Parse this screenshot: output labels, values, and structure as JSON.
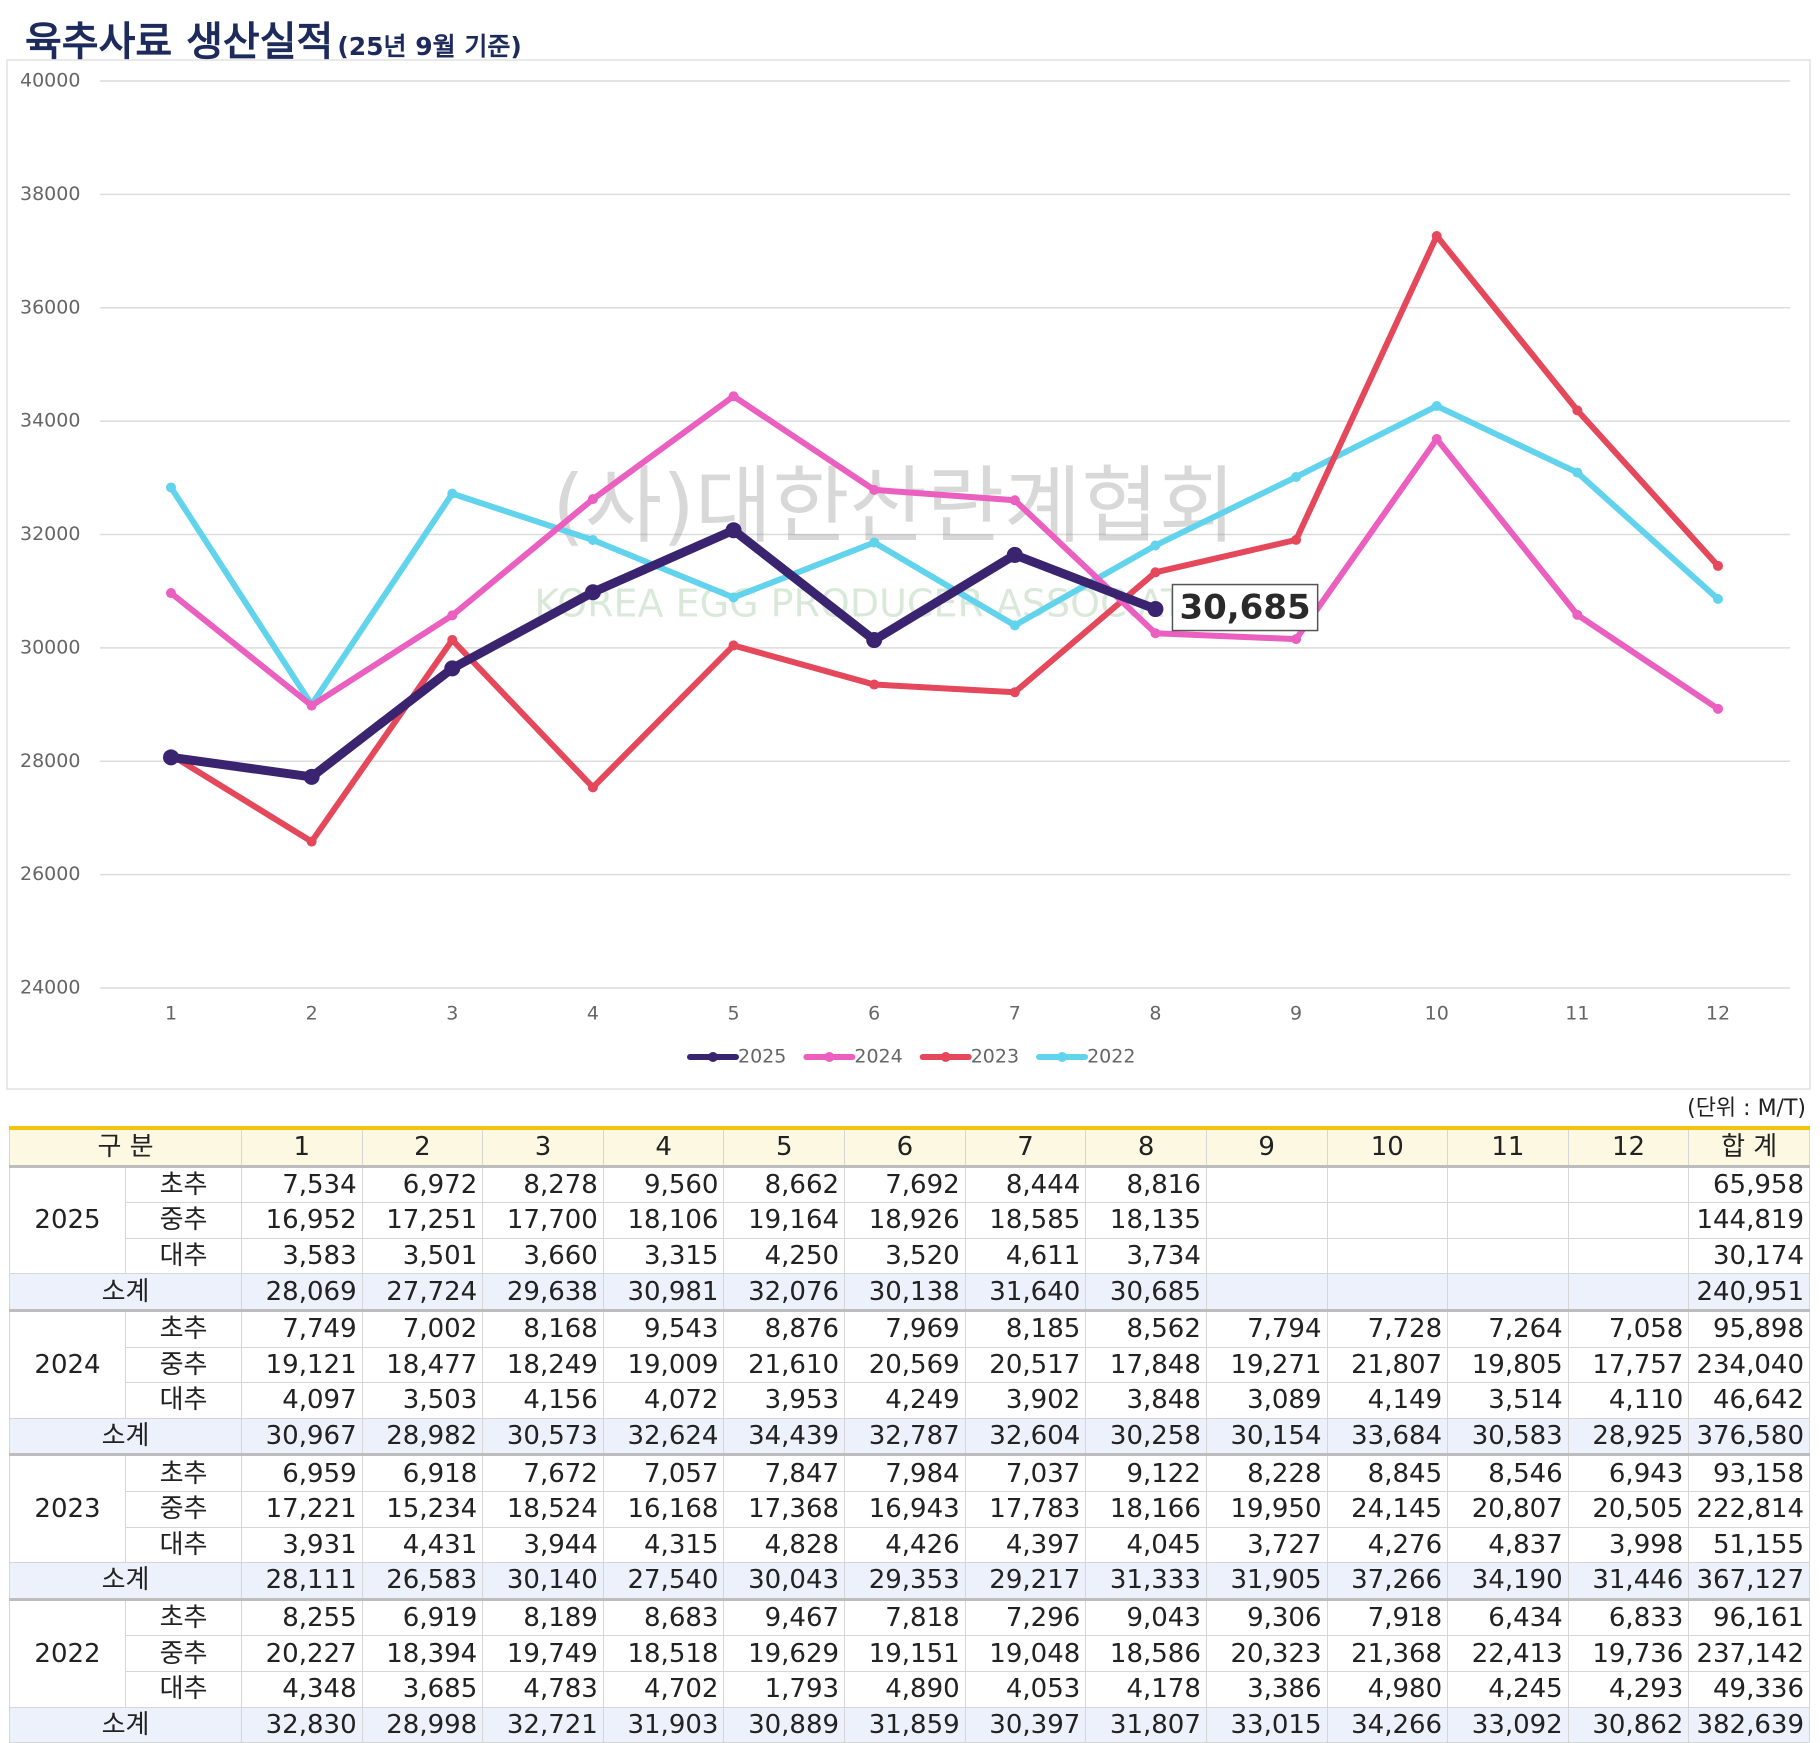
{
  "chart_data": {
    "type": "line",
    "title": "육추사료 생산실적",
    "subtitle": "(25년 9월 기준)",
    "watermark": [
      "(사)대한산란계협회",
      "KOREA EGG PRODUCER ASSOCIATION"
    ],
    "categories": [
      "1",
      "2",
      "3",
      "4",
      "5",
      "6",
      "7",
      "8",
      "9",
      "10",
      "11",
      "12"
    ],
    "ylim": [
      24000,
      40000
    ],
    "yticks": [
      24000,
      26000,
      28000,
      30000,
      32000,
      34000,
      36000,
      38000,
      40000
    ],
    "grid": true,
    "legend": "bottom",
    "series": [
      {
        "name": "2025",
        "color": "#3a2470",
        "values": [
          28069,
          27724,
          29638,
          30981,
          32076,
          30138,
          31640,
          30685,
          null,
          null,
          null,
          null
        ],
        "value_labels": [
          null,
          null,
          null,
          null,
          null,
          null,
          null,
          "30,685",
          null,
          null,
          null,
          null
        ]
      },
      {
        "name": "2024",
        "color": "#ea5fbf",
        "values": [
          30967,
          28982,
          30573,
          32624,
          34439,
          32787,
          32604,
          30258,
          30154,
          33684,
          30583,
          28925
        ]
      },
      {
        "name": "2023",
        "color": "#e4485a",
        "values": [
          28111,
          26583,
          30140,
          27540,
          30043,
          29353,
          29217,
          31333,
          31905,
          37266,
          34190,
          31446
        ]
      },
      {
        "name": "2022",
        "color": "#62d3ec",
        "values": [
          32830,
          28998,
          32721,
          31903,
          30889,
          31859,
          30397,
          31807,
          33015,
          34266,
          33092,
          30862
        ]
      }
    ]
  },
  "table": {
    "unit": "(단위 : M/T)",
    "header": [
      "구 분",
      "1",
      "2",
      "3",
      "4",
      "5",
      "6",
      "7",
      "8",
      "9",
      "10",
      "11",
      "12",
      "합 계"
    ],
    "groups": [
      {
        "year": "2025",
        "rows": [
          {
            "label": "초추",
            "values": [
              "7,534",
              "6,972",
              "8,278",
              "9,560",
              "8,662",
              "7,692",
              "8,444",
              "8,816",
              null,
              null,
              null,
              null,
              "65,958"
            ]
          },
          {
            "label": "중추",
            "values": [
              "16,952",
              "17,251",
              "17,700",
              "18,106",
              "19,164",
              "18,926",
              "18,585",
              "18,135",
              null,
              null,
              null,
              null,
              "144,819"
            ]
          },
          {
            "label": "대추",
            "values": [
              "3,583",
              "3,501",
              "3,660",
              "3,315",
              "4,250",
              "3,520",
              "4,611",
              "3,734",
              null,
              null,
              null,
              null,
              "30,174"
            ]
          }
        ],
        "subtotal": {
          "label": "소계",
          "values": [
            "28,069",
            "27,724",
            "29,638",
            "30,981",
            "32,076",
            "30,138",
            "31,640",
            "30,685",
            null,
            null,
            null,
            null,
            "240,951"
          ]
        }
      },
      {
        "year": "2024",
        "rows": [
          {
            "label": "초추",
            "values": [
              "7,749",
              "7,002",
              "8,168",
              "9,543",
              "8,876",
              "7,969",
              "8,185",
              "8,562",
              "7,794",
              "7,728",
              "7,264",
              "7,058",
              "95,898"
            ]
          },
          {
            "label": "중추",
            "values": [
              "19,121",
              "18,477",
              "18,249",
              "19,009",
              "21,610",
              "20,569",
              "20,517",
              "17,848",
              "19,271",
              "21,807",
              "19,805",
              "17,757",
              "234,040"
            ]
          },
          {
            "label": "대추",
            "values": [
              "4,097",
              "3,503",
              "4,156",
              "4,072",
              "3,953",
              "4,249",
              "3,902",
              "3,848",
              "3,089",
              "4,149",
              "3,514",
              "4,110",
              "46,642"
            ]
          }
        ],
        "subtotal": {
          "label": "소계",
          "values": [
            "30,967",
            "28,982",
            "30,573",
            "32,624",
            "34,439",
            "32,787",
            "32,604",
            "30,258",
            "30,154",
            "33,684",
            "30,583",
            "28,925",
            "376,580"
          ]
        }
      },
      {
        "year": "2023",
        "rows": [
          {
            "label": "초추",
            "values": [
              "6,959",
              "6,918",
              "7,672",
              "7,057",
              "7,847",
              "7,984",
              "7,037",
              "9,122",
              "8,228",
              "8,845",
              "8,546",
              "6,943",
              "93,158"
            ]
          },
          {
            "label": "중추",
            "values": [
              "17,221",
              "15,234",
              "18,524",
              "16,168",
              "17,368",
              "16,943",
              "17,783",
              "18,166",
              "19,950",
              "24,145",
              "20,807",
              "20,505",
              "222,814"
            ]
          },
          {
            "label": "대추",
            "values": [
              "3,931",
              "4,431",
              "3,944",
              "4,315",
              "4,828",
              "4,426",
              "4,397",
              "4,045",
              "3,727",
              "4,276",
              "4,837",
              "3,998",
              "51,155"
            ]
          }
        ],
        "subtotal": {
          "label": "소계",
          "values": [
            "28,111",
            "26,583",
            "30,140",
            "27,540",
            "30,043",
            "29,353",
            "29,217",
            "31,333",
            "31,905",
            "37,266",
            "34,190",
            "31,446",
            "367,127"
          ]
        }
      },
      {
        "year": "2022",
        "rows": [
          {
            "label": "초추",
            "values": [
              "8,255",
              "6,919",
              "8,189",
              "8,683",
              "9,467",
              "7,818",
              "7,296",
              "9,043",
              "9,306",
              "7,918",
              "6,434",
              "6,833",
              "96,161"
            ]
          },
          {
            "label": "중추",
            "values": [
              "20,227",
              "18,394",
              "19,749",
              "18,518",
              "19,629",
              "19,151",
              "19,048",
              "18,586",
              "20,323",
              "21,368",
              "22,413",
              "19,736",
              "237,142"
            ]
          },
          {
            "label": "대추",
            "values": [
              "4,348",
              "3,685",
              "4,783",
              "4,702",
              "1,793",
              "4,890",
              "4,053",
              "4,178",
              "3,386",
              "4,980",
              "4,245",
              "4,293",
              "49,336"
            ]
          }
        ],
        "subtotal": {
          "label": "소계",
          "values": [
            "32,830",
            "28,998",
            "32,721",
            "31,903",
            "30,889",
            "31,859",
            "30,397",
            "31,807",
            "33,015",
            "34,266",
            "33,092",
            "30,862",
            "382,639"
          ]
        }
      }
    ]
  }
}
